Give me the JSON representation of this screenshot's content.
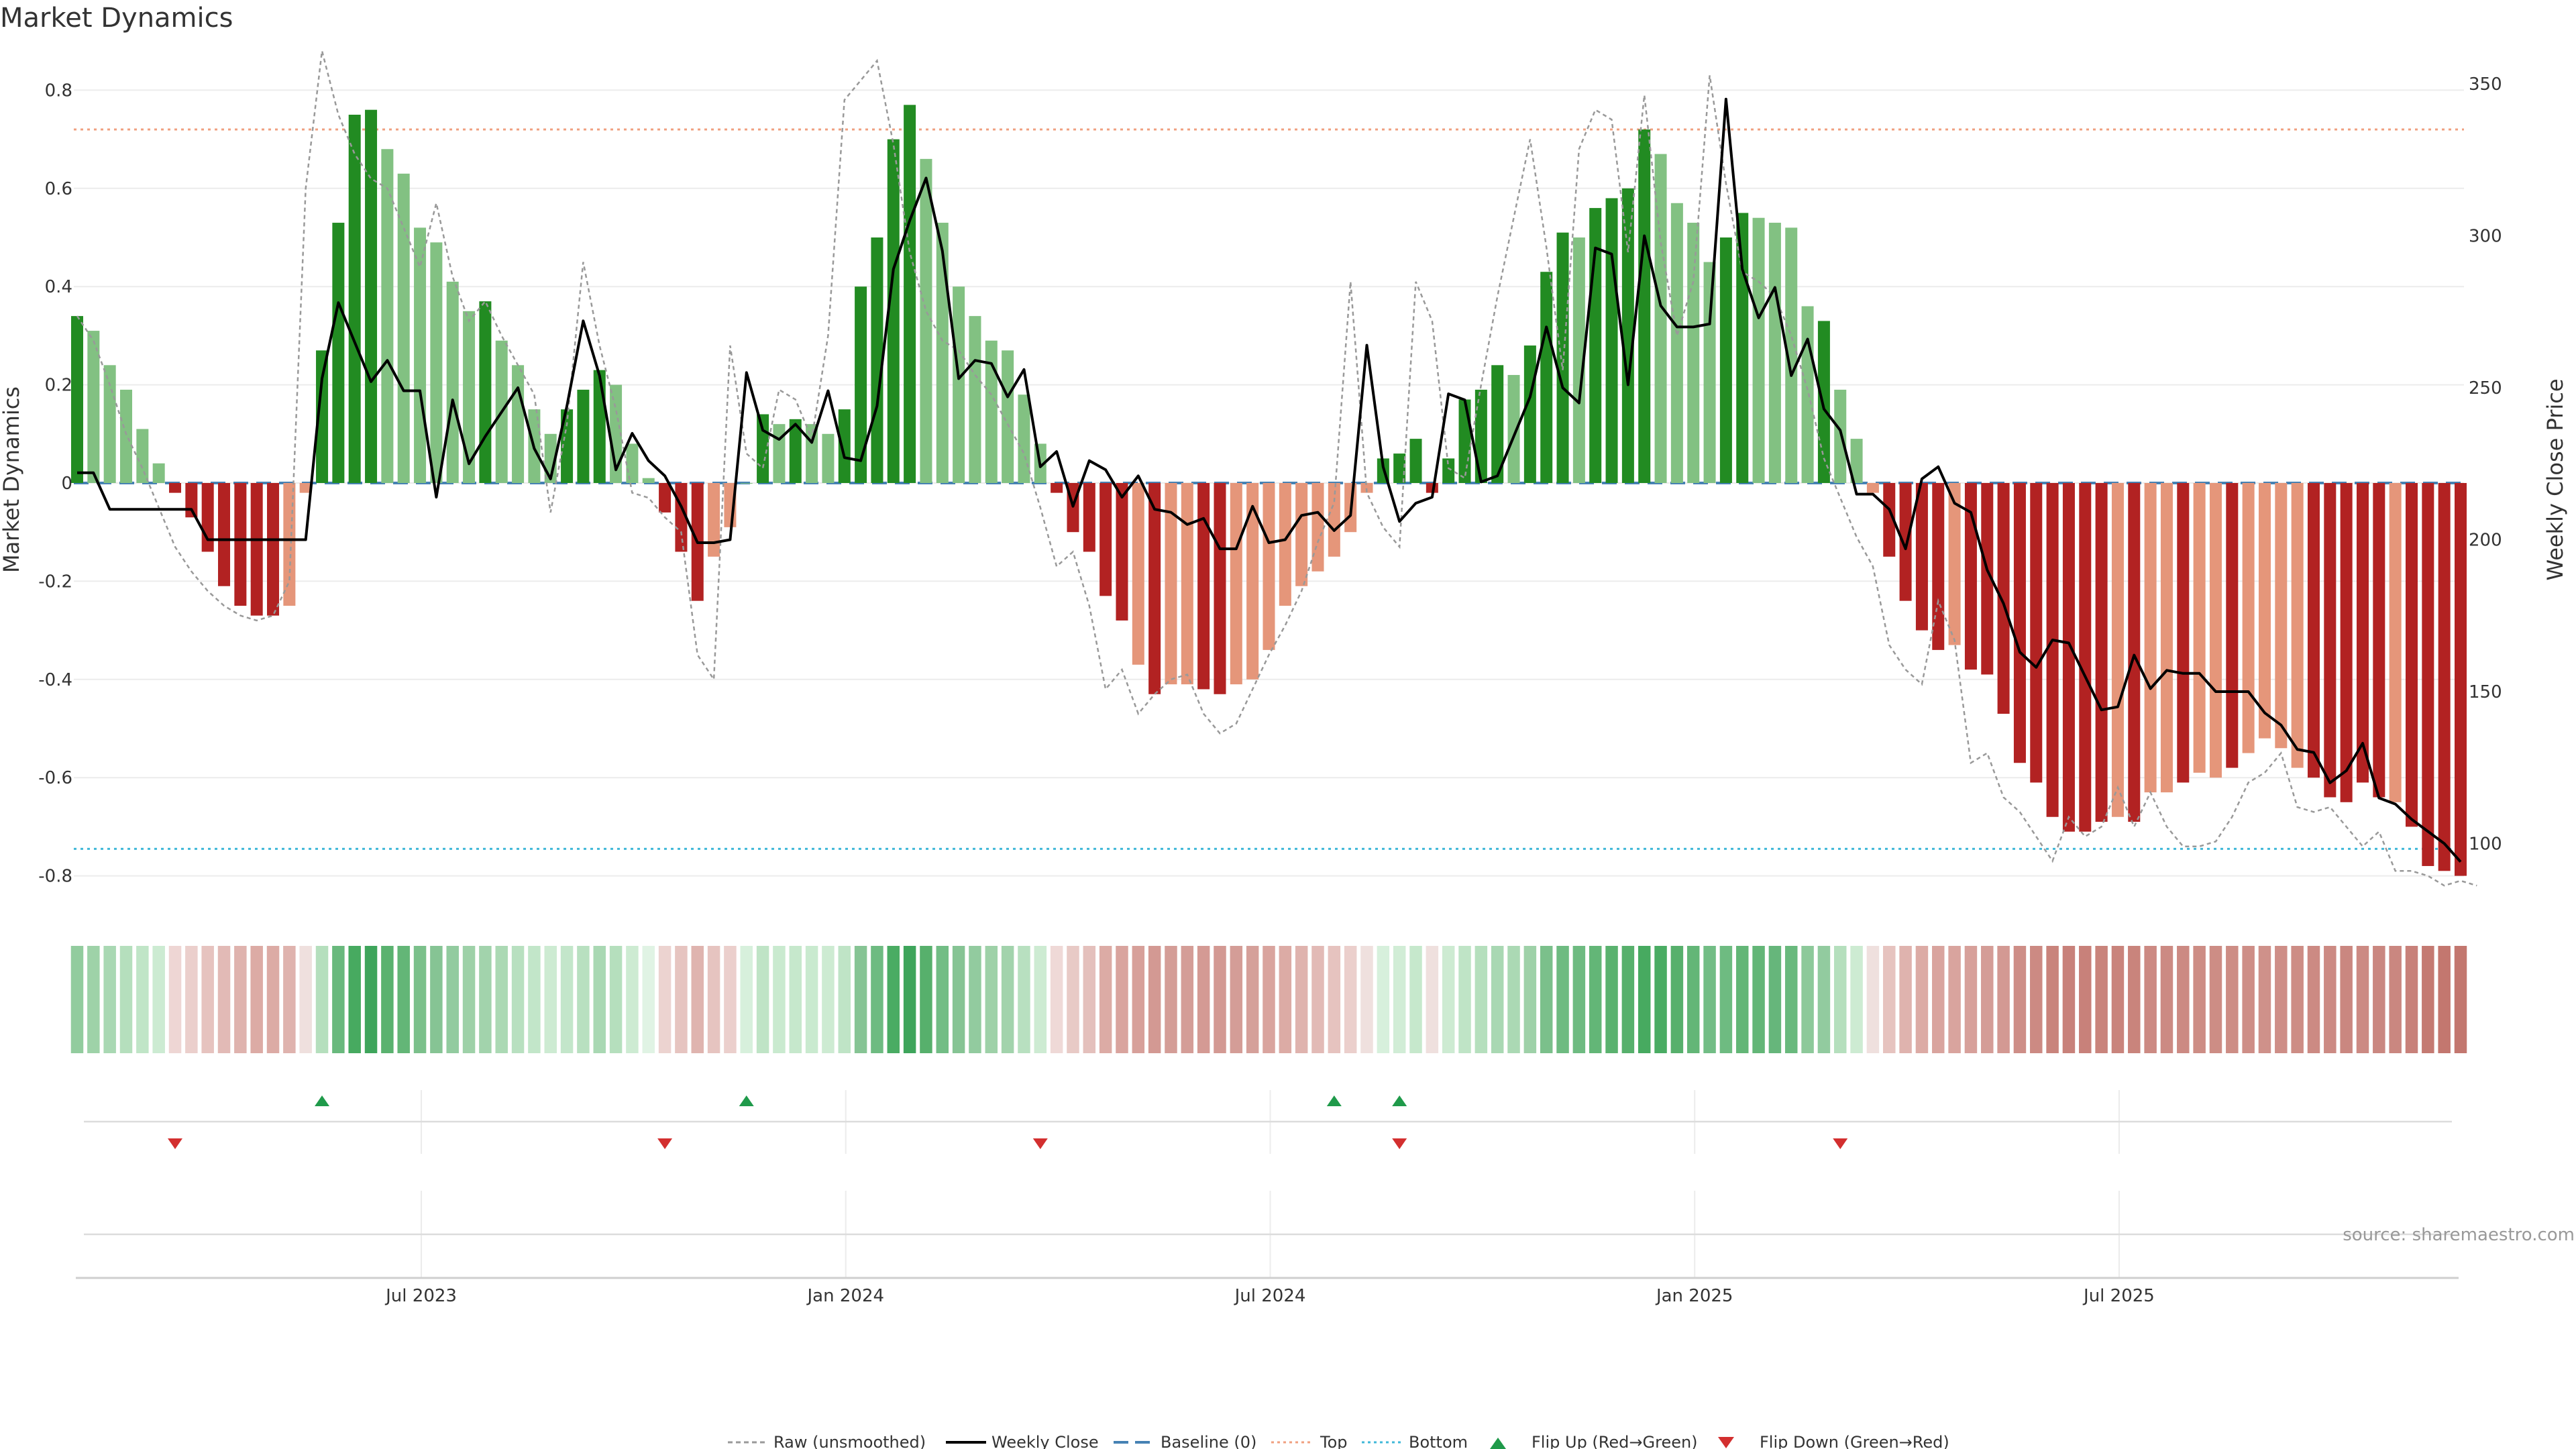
{
  "chart_data": {
    "type": "bar",
    "title": "Market Dynamics",
    "ylabel": "Market Dynamics",
    "y2label": "Weekly Close Price",
    "ylim": [
      -0.88,
      0.88
    ],
    "y2lim": [
      83,
      357
    ],
    "yticks": [
      "0.8",
      "0.6",
      "0.4",
      "0.2",
      "0",
      "-0.2",
      "-0.4",
      "-0.6",
      "-0.8"
    ],
    "ytick_values": [
      0.8,
      0.6,
      0.4,
      0.2,
      0,
      -0.2,
      -0.4,
      -0.6,
      -0.8
    ],
    "y2ticks": [
      "350",
      "300",
      "250",
      "200",
      "150",
      "100"
    ],
    "y2tick_values": [
      350,
      300,
      250,
      200,
      150,
      100
    ],
    "xtick_labels": [
      "Jul 2023",
      "Jan 2024",
      "Jul 2024",
      "Jan 2025",
      "Jul 2025"
    ],
    "xtick_weeks": [
      21,
      47,
      73,
      99,
      125
    ],
    "top_level": 0.72,
    "bottom_level": -0.745,
    "baseline": 0,
    "colors": {
      "strong_green": "#228b22",
      "light_green": "#82c182",
      "strong_red": "#b22222",
      "light_red": "#e5967a",
      "close": "#000000",
      "raw": "#999999",
      "baseline": "#4682b4",
      "top": "#f0a080",
      "bottom": "#40b8d8",
      "flip_up": "#1f9a4a",
      "flip_down": "#d32f2f"
    },
    "bar_values": [
      0.34,
      0.31,
      0.24,
      0.19,
      0.11,
      0.04,
      -0.02,
      -0.07,
      -0.14,
      -0.21,
      -0.25,
      -0.27,
      -0.27,
      -0.25,
      -0.02,
      0.27,
      0.53,
      0.75,
      0.76,
      0.68,
      0.63,
      0.52,
      0.49,
      0.41,
      0.35,
      0.37,
      0.29,
      0.24,
      0.15,
      0.1,
      0.15,
      0.19,
      0.23,
      0.2,
      0.08,
      0.01,
      -0.06,
      -0.14,
      -0.24,
      -0.15,
      -0.09,
      0.0,
      0.14,
      0.12,
      0.13,
      0.12,
      0.1,
      0.15,
      0.4,
      0.5,
      0.7,
      0.77,
      0.66,
      0.53,
      0.4,
      0.34,
      0.29,
      0.27,
      0.18,
      0.08,
      -0.02,
      -0.1,
      -0.14,
      -0.23,
      -0.28,
      -0.37,
      -0.43,
      -0.41,
      -0.41,
      -0.42,
      -0.43,
      -0.41,
      -0.4,
      -0.34,
      -0.25,
      -0.21,
      -0.18,
      -0.15,
      -0.1,
      -0.02,
      0.05,
      0.06,
      0.09,
      -0.02,
      0.05,
      0.17,
      0.19,
      0.24,
      0.22,
      0.28,
      0.43,
      0.51,
      0.5,
      0.56,
      0.58,
      0.6,
      0.72,
      0.67,
      0.57,
      0.53,
      0.45,
      0.5,
      0.55,
      0.54,
      0.53,
      0.52,
      0.36,
      0.33,
      0.19,
      0.09,
      -0.02,
      -0.15,
      -0.24,
      -0.3,
      -0.34,
      -0.33,
      -0.38,
      -0.39,
      -0.47,
      -0.57,
      -0.61,
      -0.68,
      -0.71,
      -0.71,
      -0.69,
      -0.68,
      -0.69,
      -0.63,
      -0.63,
      -0.61,
      -0.59,
      -0.6,
      -0.58,
      -0.55,
      -0.52,
      -0.54,
      -0.58,
      -0.6,
      -0.64,
      -0.65,
      -0.61,
      -0.64,
      -0.65,
      -0.7,
      -0.78,
      -0.79,
      -0.8
    ],
    "strong_flags": [
      1,
      0,
      0,
      0,
      0,
      0,
      1,
      1,
      1,
      1,
      1,
      1,
      1,
      0,
      0,
      1,
      1,
      1,
      1,
      0,
      0,
      0,
      0,
      0,
      0,
      1,
      0,
      0,
      0,
      0,
      1,
      1,
      1,
      0,
      0,
      0,
      1,
      1,
      1,
      0,
      0,
      0,
      1,
      0,
      1,
      0,
      0,
      1,
      1,
      1,
      1,
      1,
      0,
      0,
      0,
      0,
      0,
      0,
      0,
      0,
      1,
      1,
      1,
      1,
      1,
      0,
      1,
      0,
      0,
      1,
      1,
      0,
      0,
      0,
      0,
      0,
      0,
      0,
      0,
      0,
      1,
      1,
      1,
      1,
      1,
      1,
      1,
      1,
      0,
      1,
      1,
      1,
      0,
      1,
      1,
      1,
      1,
      0,
      0,
      0,
      0,
      1,
      1,
      0,
      0,
      0,
      0,
      1,
      0,
      0,
      0,
      1,
      1,
      1,
      1,
      0,
      1,
      1,
      1,
      1,
      1,
      1,
      1,
      1,
      1,
      0,
      1,
      0,
      0,
      1,
      0,
      0,
      1,
      0,
      0,
      0,
      0,
      1,
      1,
      1,
      1,
      1,
      0,
      1,
      1,
      1,
      1,
      1
    ],
    "weekly_close": [
      222,
      222,
      210,
      210,
      210,
      210,
      210,
      210,
      200,
      200,
      200,
      200,
      200,
      200,
      200,
      253,
      278,
      265,
      252,
      259,
      249,
      249,
      214,
      246,
      225,
      234,
      242,
      250,
      230,
      220,
      244,
      272,
      254,
      223,
      235,
      226,
      221,
      211,
      199,
      199,
      200,
      255,
      236,
      233,
      238,
      232,
      249,
      227,
      226,
      244,
      289,
      305,
      319,
      295,
      253,
      259,
      258,
      247,
      256,
      224,
      229,
      211,
      226,
      223,
      214,
      221,
      210,
      209,
      205,
      207,
      197,
      197,
      211,
      199,
      200,
      208,
      209,
      203,
      208,
      264,
      224,
      206,
      212,
      214,
      248,
      246,
      219,
      221,
      234,
      247,
      270,
      250,
      245,
      296,
      294,
      251,
      300,
      277,
      270,
      270,
      271,
      345,
      289,
      273,
      283,
      254,
      266,
      243,
      236,
      215,
      215,
      210,
      197,
      220,
      224,
      212,
      209,
      190,
      179,
      163,
      158,
      167,
      166,
      155,
      144,
      145,
      162,
      151,
      157,
      156,
      156,
      150,
      150,
      150,
      143,
      139,
      131,
      130,
      120,
      124,
      133,
      115,
      113,
      108,
      104,
      100,
      94
    ],
    "raw": [
      0.34,
      0.29,
      0.2,
      0.1,
      0.03,
      -0.05,
      -0.13,
      -0.18,
      -0.22,
      -0.25,
      -0.27,
      -0.28,
      -0.27,
      -0.2,
      0.6,
      0.88,
      0.75,
      0.67,
      0.62,
      0.6,
      0.52,
      0.44,
      0.57,
      0.42,
      0.33,
      0.37,
      0.3,
      0.24,
      0.18,
      -0.06,
      0.12,
      0.45,
      0.28,
      0.15,
      -0.02,
      -0.03,
      -0.07,
      -0.1,
      -0.35,
      -0.4,
      0.28,
      0.06,
      0.03,
      0.19,
      0.17,
      0.09,
      0.3,
      0.78,
      0.82,
      0.86,
      0.69,
      0.47,
      0.35,
      0.29,
      0.27,
      0.22,
      0.18,
      0.12,
      0.06,
      -0.05,
      -0.17,
      -0.14,
      -0.25,
      -0.42,
      -0.38,
      -0.47,
      -0.43,
      -0.4,
      -0.39,
      -0.47,
      -0.51,
      -0.49,
      -0.42,
      -0.35,
      -0.29,
      -0.22,
      -0.12,
      -0.04,
      0.41,
      -0.02,
      -0.09,
      -0.13,
      0.41,
      0.33,
      0.03,
      0.01,
      0.2,
      0.38,
      0.54,
      0.7,
      0.48,
      0.23,
      0.68,
      0.76,
      0.74,
      0.47,
      0.79,
      0.49,
      0.3,
      0.41,
      0.83,
      0.61,
      0.43,
      0.41,
      0.38,
      0.3,
      0.19,
      0.05,
      -0.03,
      -0.11,
      -0.17,
      -0.33,
      -0.38,
      -0.41,
      -0.24,
      -0.32,
      -0.57,
      -0.55,
      -0.64,
      -0.67,
      -0.72,
      -0.77,
      -0.68,
      -0.72,
      -0.7,
      -0.62,
      -0.7,
      -0.63,
      -0.7,
      -0.74,
      -0.74,
      -0.73,
      -0.68,
      -0.61,
      -0.59,
      -0.55,
      -0.66,
      -0.67,
      -0.66,
      -0.7,
      -0.74,
      -0.71,
      -0.79,
      -0.79,
      -0.8,
      -0.82,
      -0.81,
      -0.82
    ],
    "heat_colors": [
      "#92cc9e",
      "#9ed2a8",
      "#a9d8b3",
      "#b5dfbd",
      "#c0e5c7",
      "#ccebd2",
      "#eed6d4",
      "#ebcfcc",
      "#e6c3bf",
      "#e2bab6",
      "#dfb3ae",
      "#dcaba5",
      "#dcaba5",
      "#dfb3ae",
      "#efe0de",
      "#b5dfbd",
      "#69b97d",
      "#47aa60",
      "#3ea55b",
      "#5ab26f",
      "#63b677",
      "#7bc08b",
      "#86c494",
      "#92cb9f",
      "#9ed1a8",
      "#a2d3ac",
      "#abd9b4",
      "#b8e0c0",
      "#c2e6c9",
      "#cdebd2",
      "#c3e6ca",
      "#b8e0c0",
      "#a9d8b3",
      "#b5dfbd",
      "#cdebd2",
      "#e0f3e4",
      "#ecd3d0",
      "#e6c4c0",
      "#dfb4af",
      "#e6c4c0",
      "#ebcfcc",
      "#d7f0dc",
      "#bfe4c6",
      "#c9eacf",
      "#c6e8cc",
      "#c9eacf",
      "#cdebd2",
      "#bfe4c6",
      "#86c494",
      "#6ebb81",
      "#4aac63",
      "#3ea55b",
      "#57b06c",
      "#72bd85",
      "#86c494",
      "#92cb9f",
      "#9ed1a8",
      "#a2d3ac",
      "#b8e0c0",
      "#cdebd2",
      "#efd9d7",
      "#e8cac6",
      "#e4c0bc",
      "#dcaba5",
      "#d9a49e",
      "#d7a09a",
      "#d39993",
      "#d49d97",
      "#d49d97",
      "#d49a94",
      "#d39993",
      "#d49d97",
      "#d5a09a",
      "#d9a49e",
      "#dcaba5",
      "#dfb3ae",
      "#e2bab6",
      "#e6c3bf",
      "#ebcfcc",
      "#efe0de",
      "#d7f0dc",
      "#d1edd6",
      "#c6e8cc",
      "#efe0de",
      "#cdebd2",
      "#bfe4c6",
      "#b5dfbd",
      "#a9d8b3",
      "#abd9b4",
      "#9ed1a8",
      "#7bc08b",
      "#6ebb81",
      "#6ebb81",
      "#63b677",
      "#5ab26f",
      "#57b06c",
      "#47aa60",
      "#4aac63",
      "#57b06c",
      "#63b677",
      "#72bd85",
      "#6ebb81",
      "#63b677",
      "#63b677",
      "#66b67b",
      "#69b97d",
      "#8dc99a",
      "#92cb9f",
      "#b5dfbd",
      "#cdebd2",
      "#efe0de",
      "#e6c3bf",
      "#dfb3ae",
      "#dcaba5",
      "#d9a49e",
      "#d9a49e",
      "#d7a09a",
      "#d49d97",
      "#d39993",
      "#ce8e87",
      "#cc8a83",
      "#c9847c",
      "#c8817a",
      "#c8817a",
      "#c9847c",
      "#c9847c",
      "#c9847c",
      "#cc8a83",
      "#cc8a83",
      "#cc8a83",
      "#cd8d85",
      "#cd8d85",
      "#cd8d85",
      "#ce8e87",
      "#cf918a",
      "#ce8e87",
      "#cd8d85",
      "#cc8a83",
      "#cc8a83",
      "#ca8780",
      "#cc8a83",
      "#ca8780",
      "#ca8780",
      "#c8817a",
      "#c47a72",
      "#c3776f",
      "#c3776f"
    ],
    "flip_up_weeks": [
      15,
      41,
      77,
      81
    ],
    "flip_down_weeks": [
      6,
      36,
      59,
      81,
      108
    ],
    "legend": [
      "Raw (unsmoothed)",
      "Weekly Close",
      "Baseline (0)",
      "Top",
      "Bottom",
      "Flip Up (Red→Green)",
      "Flip Down (Green→Red)"
    ],
    "source": "source: sharemaestro.com"
  }
}
